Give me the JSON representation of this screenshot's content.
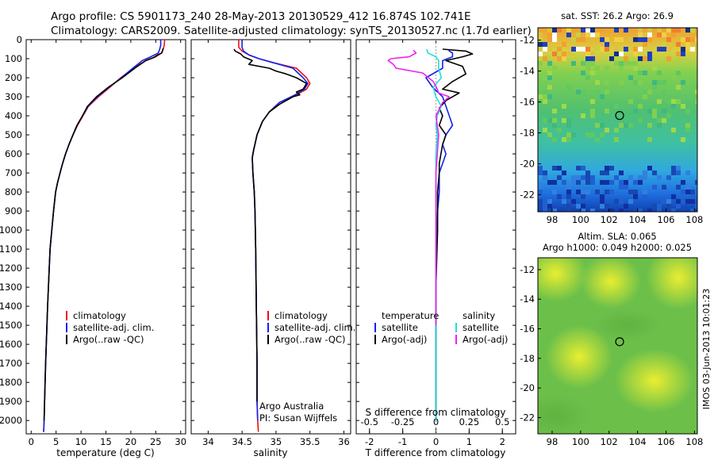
{
  "header": {
    "line1": "Argo profile: CS 5901173_240 28-May-2013 20130529_412 16.874S 102.741E",
    "line2": "Climatology: CARS2009. Satellite-adjusted climatology: synTS_20130527.nc (1.7d earlier)"
  },
  "colors": {
    "red": "#ee1111",
    "blue": "#1122ee",
    "black": "#000000",
    "cyan": "#22dddd",
    "magenta": "#ee22ee"
  },
  "depth_axis": {
    "ticks": [
      0,
      100,
      200,
      300,
      400,
      500,
      600,
      700,
      800,
      900,
      1000,
      1100,
      1200,
      1300,
      1400,
      1500,
      1600,
      1700,
      1800,
      1900,
      2000
    ],
    "max": 2070
  },
  "chart_data": [
    {
      "id": "temperature",
      "type": "line",
      "xlabel": "temperature (deg C)",
      "xlim": [
        -1,
        31
      ],
      "xticks": [
        0,
        5,
        10,
        15,
        20,
        25,
        30
      ],
      "legend": [
        "climatology",
        "satellite-adj. clim.",
        "Argo(..raw -QC)"
      ],
      "series": [
        {
          "name": "climatology",
          "color": "red",
          "x": [
            26.8,
            26.7,
            26.5,
            26.2,
            25.0,
            23.0,
            20.5,
            18.0,
            15.8,
            13.5,
            11.5,
            10.4,
            9.3,
            8.4,
            7.6,
            6.9,
            6.3,
            5.8,
            5.3,
            4.9,
            4.5,
            3.8,
            3.3,
            2.9,
            2.7,
            2.6,
            2.5
          ],
          "y": [
            0,
            30,
            50,
            70,
            90,
            110,
            150,
            200,
            250,
            300,
            350,
            400,
            450,
            500,
            550,
            600,
            650,
            700,
            750,
            800,
            900,
            1100,
            1400,
            1700,
            1900,
            2000,
            2060
          ]
        },
        {
          "name": "satellite-adj. clim.",
          "color": "blue",
          "x": [
            26.0,
            26.0,
            25.8,
            25.5,
            24.0,
            22.3,
            20.4,
            18.1,
            15.6,
            13.3,
            11.4,
            10.3,
            9.2,
            8.4,
            7.6,
            6.9,
            6.3,
            5.8,
            5.3,
            4.9,
            4.5,
            3.8,
            3.3,
            2.9,
            2.7,
            2.6,
            2.5
          ],
          "y": [
            0,
            30,
            50,
            70,
            90,
            110,
            150,
            200,
            250,
            300,
            350,
            400,
            450,
            500,
            550,
            600,
            650,
            700,
            750,
            800,
            900,
            1100,
            1400,
            1700,
            1900,
            2000,
            2060
          ]
        },
        {
          "name": "Argo(..raw -QC)",
          "color": "black",
          "x": [
            26.5,
            26.4,
            26.2,
            25.4,
            24.5,
            23.0,
            20.8,
            18.3,
            15.5,
            13.1,
            11.3,
            10.3,
            9.2,
            8.4,
            7.6,
            6.9,
            6.3,
            5.8,
            5.3,
            4.9,
            4.5,
            3.8,
            3.3,
            2.9,
            2.7,
            2.6
          ],
          "y": [
            45,
            55,
            70,
            80,
            95,
            110,
            150,
            200,
            250,
            300,
            350,
            400,
            450,
            500,
            550,
            600,
            650,
            700,
            750,
            800,
            900,
            1100,
            1400,
            1700,
            1900,
            2000
          ]
        }
      ]
    },
    {
      "id": "salinity",
      "type": "line",
      "xlabel": "salinity",
      "xlim": [
        33.75,
        36.1
      ],
      "xticks": [
        34,
        34.5,
        35,
        35.5,
        36
      ],
      "legend": [
        "climatology",
        "satellite-adj. clim.",
        "Argo(..raw -QC)"
      ],
      "annotations": [
        "Argo Australia",
        "PI: Susan Wijffels"
      ],
      "series": [
        {
          "name": "climatology",
          "color": "red",
          "x": [
            34.45,
            34.45,
            34.5,
            34.6,
            34.75,
            34.95,
            35.3,
            35.45,
            35.5,
            35.45,
            35.3,
            35.05,
            34.9,
            34.8,
            34.72,
            34.67,
            34.65,
            34.66,
            34.68,
            34.69,
            34.7,
            34.71,
            34.72,
            34.72,
            34.73,
            34.74
          ],
          "y": [
            0,
            40,
            60,
            80,
            100,
            120,
            150,
            200,
            230,
            260,
            290,
            330,
            380,
            430,
            500,
            580,
            620,
            700,
            800,
            900,
            1100,
            1400,
            1700,
            1900,
            2000,
            2060
          ]
        },
        {
          "name": "satellite-adj. clim.",
          "color": "blue",
          "x": [
            34.5,
            34.5,
            34.52,
            34.6,
            34.75,
            34.95,
            35.25,
            35.4,
            35.47,
            35.42,
            35.28,
            35.05,
            34.9,
            34.8,
            34.72,
            34.67,
            34.65,
            34.66,
            34.68,
            34.69,
            34.7,
            34.71,
            34.72,
            34.72,
            34.73
          ],
          "y": [
            0,
            40,
            60,
            80,
            100,
            120,
            150,
            200,
            230,
            260,
            290,
            330,
            380,
            430,
            500,
            580,
            620,
            700,
            800,
            900,
            1100,
            1400,
            1700,
            1900,
            2000
          ]
        },
        {
          "name": "Argo(..raw -QC)",
          "color": "black",
          "x": [
            34.38,
            34.4,
            34.48,
            34.52,
            34.65,
            34.6,
            34.9,
            35.0,
            35.15,
            35.3,
            35.45,
            35.4,
            35.3,
            35.35,
            35.25,
            35.05,
            34.9,
            34.8,
            34.72,
            34.67,
            34.65,
            34.66,
            34.68,
            34.69,
            34.7,
            34.71,
            34.72,
            34.72
          ],
          "y": [
            50,
            60,
            75,
            90,
            110,
            130,
            150,
            165,
            180,
            200,
            230,
            260,
            275,
            290,
            300,
            340,
            380,
            430,
            500,
            580,
            620,
            700,
            800,
            900,
            1100,
            1400,
            1700,
            1900
          ]
        }
      ]
    },
    {
      "id": "difference",
      "type": "line",
      "xlabel": "T difference from climatology",
      "xlim": [
        -2.4,
        2.4
      ],
      "xticks": [
        -2,
        -1,
        0,
        1,
        2
      ],
      "top_label": "S difference from climatology",
      "top_ticks": [
        -0.5,
        -0.25,
        0,
        0.25,
        0.5
      ],
      "top_tick_labels": [
        "-0.5",
        "-0.25",
        "0",
        "0.25",
        "0.5"
      ],
      "top_scale": 4,
      "legend_titles": [
        "temperature",
        "salinity"
      ],
      "legend": [
        "satellite",
        "Argo(-adj)",
        "satellite",
        "Argo(-adj)"
      ],
      "series": [
        {
          "name": "T satellite",
          "color": "blue",
          "units": "T",
          "x": [
            0.4,
            0.4,
            0.5,
            0.5,
            0.2,
            0.2,
            -0.3,
            -0.1,
            0.2,
            0.3,
            0.4,
            0.5,
            0.3,
            0.2,
            0.3,
            0.2,
            0.1,
            0.1,
            0.1,
            0.05,
            0.0,
            0.0,
            0.0,
            0.0
          ],
          "y": [
            50,
            60,
            70,
            90,
            110,
            150,
            200,
            250,
            300,
            350,
            400,
            450,
            500,
            550,
            600,
            650,
            700,
            750,
            800,
            900,
            1100,
            1400,
            1700,
            2000
          ]
        },
        {
          "name": "T Argo(-adj)",
          "color": "black",
          "units": "T",
          "x": [
            0.2,
            0.9,
            1.1,
            0.8,
            0.3,
            0.8,
            0.9,
            0.5,
            0.2,
            0.7,
            0.3,
            0.1,
            0.2,
            0.1,
            0.3,
            0.2,
            0.15,
            0.1,
            0.1,
            0.05,
            0.05,
            0.0,
            0.0,
            0.0
          ],
          "y": [
            50,
            60,
            75,
            90,
            110,
            140,
            180,
            220,
            260,
            280,
            320,
            360,
            400,
            450,
            500,
            550,
            600,
            650,
            700,
            800,
            1000,
            1300,
            1700,
            2000
          ]
        },
        {
          "name": "S satellite",
          "color": "cyan",
          "units": "S",
          "x": [
            -0.07,
            -0.06,
            0.0,
            0.02,
            0.02,
            0.04,
            -0.02,
            0.0,
            0.04,
            0.01,
            0.0,
            0.01,
            0.0,
            0.0,
            0.0,
            0.0,
            0.0
          ],
          "y": [
            50,
            70,
            90,
            110,
            150,
            200,
            250,
            300,
            350,
            400,
            450,
            500,
            600,
            700,
            900,
            1300,
            2000
          ]
        },
        {
          "name": "S Argo(-adj)",
          "color": "magenta",
          "units": "S",
          "x": [
            -0.17,
            -0.15,
            -0.2,
            -0.34,
            -0.36,
            -0.32,
            -0.3,
            -0.1,
            -0.02,
            0.01,
            0.02,
            0.1,
            0.05,
            0.0,
            0.02,
            0.0,
            0.0,
            0.0
          ],
          "y": [
            55,
            70,
            90,
            100,
            110,
            130,
            150,
            175,
            220,
            260,
            280,
            300,
            330,
            400,
            500,
            700,
            1000,
            1500
          ]
        }
      ]
    },
    {
      "id": "sst_map",
      "type": "heatmap",
      "title": "sat. SST: 26.2  Argo: 26.9",
      "xticks": [
        98,
        100,
        102,
        104,
        106,
        108
      ],
      "yticks": [
        -12,
        -14,
        -16,
        -18,
        -20,
        -22
      ],
      "xlim": [
        97,
        108.2
      ],
      "ylim": [
        -23.1,
        -11.2
      ],
      "marker": {
        "lon": 102.741,
        "lat": -16.874
      }
    },
    {
      "id": "sla_map",
      "type": "heatmap",
      "title": "Altim. SLA: 0.065",
      "subtitle": "Argo h1000: 0.049  h2000: 0.025",
      "xticks": [
        98,
        100,
        102,
        104,
        106,
        108
      ],
      "yticks": [
        -12,
        -14,
        -16,
        -18,
        -20,
        -22
      ],
      "xlim": [
        97,
        108.2
      ],
      "ylim": [
        -23.1,
        -11.2
      ],
      "marker": {
        "lon": 102.741,
        "lat": -16.874
      },
      "side_label": "IMOS 03-Jun-2013 10:01:23"
    }
  ]
}
